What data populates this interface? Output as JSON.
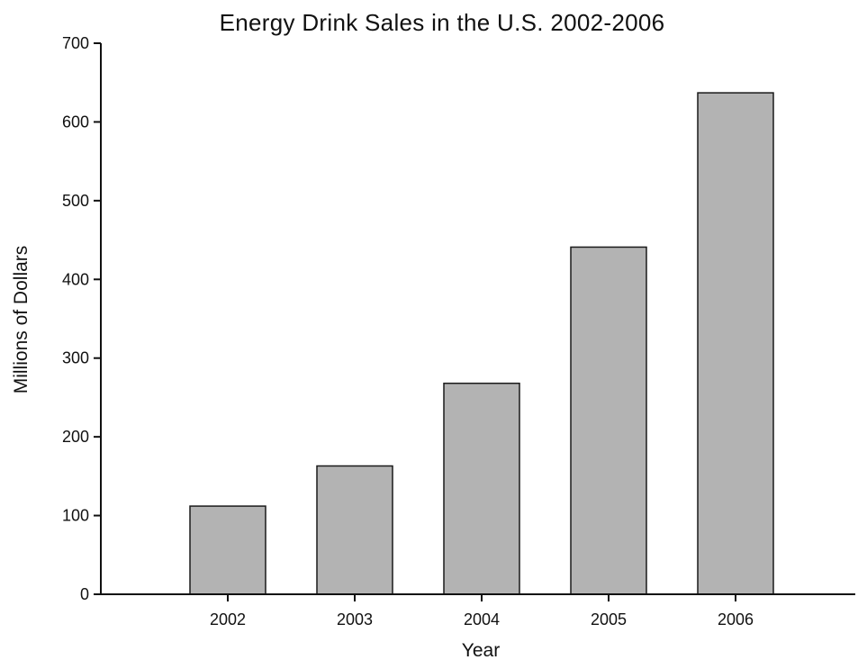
{
  "chart_data": {
    "type": "bar",
    "title": "Energy Drink Sales in the U.S. 2002-2006",
    "xlabel": "Year",
    "ylabel": "Millions of Dollars",
    "categories": [
      "2002",
      "2003",
      "2004",
      "2005",
      "2006"
    ],
    "values": [
      112,
      163,
      268,
      441,
      637
    ],
    "ylim": [
      0,
      700
    ],
    "yticks": [
      0,
      100,
      200,
      300,
      400,
      500,
      600,
      700
    ],
    "grid": false,
    "legend": "none",
    "bar_color": "#b3b3b3",
    "bar_edge_color": "#1a1a1a"
  }
}
